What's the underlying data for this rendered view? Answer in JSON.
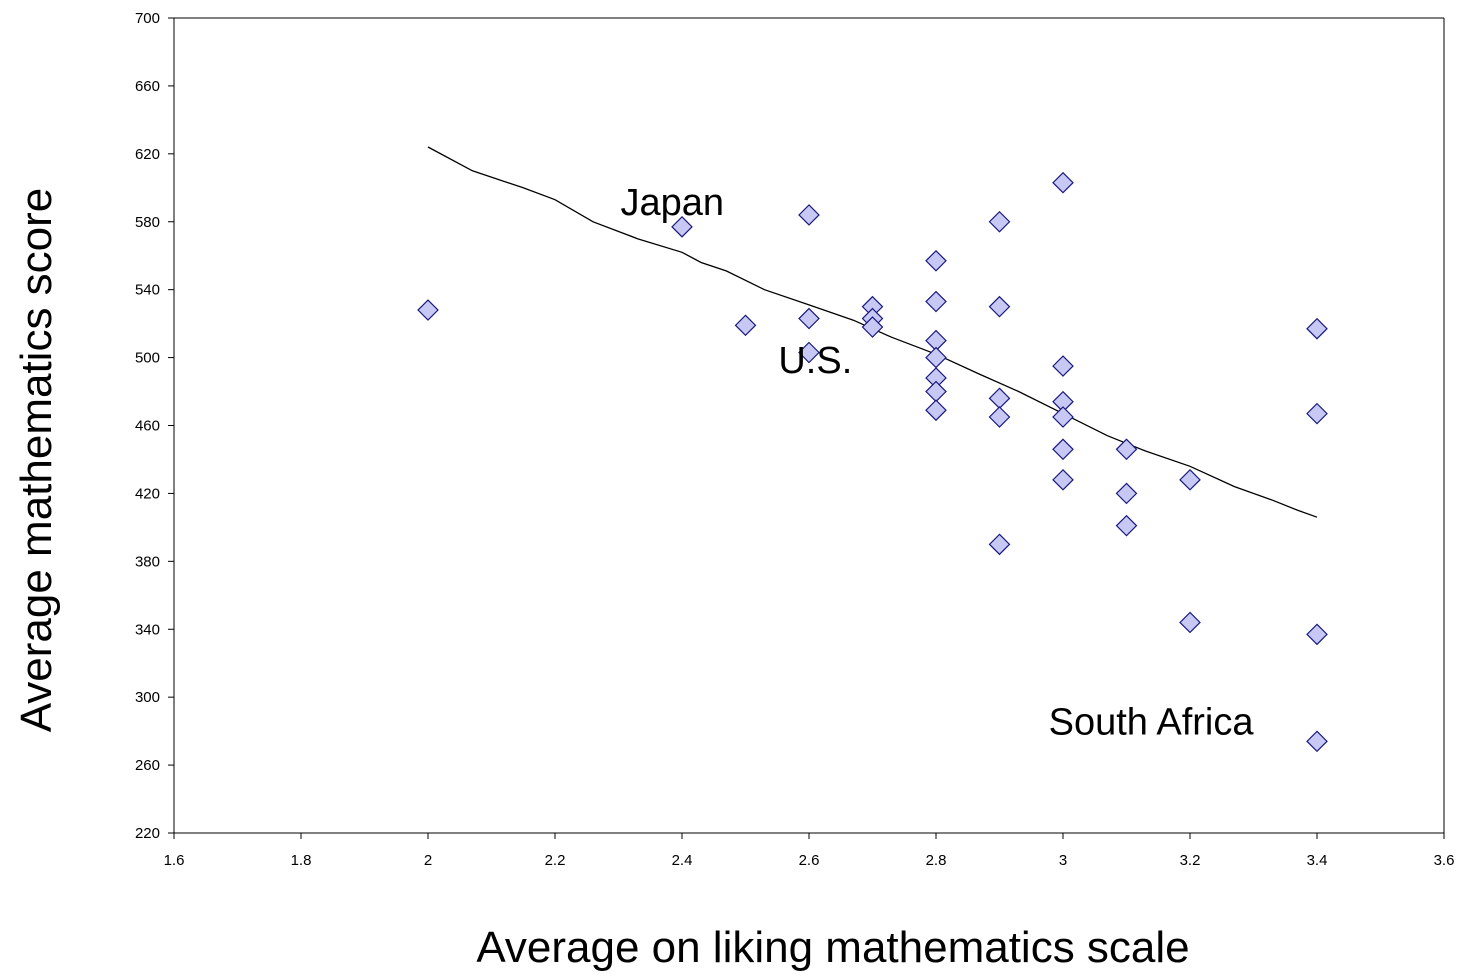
{
  "chart_data": {
    "type": "scatter",
    "title": "",
    "xlabel": "Average on liking mathematics scale",
    "ylabel": "Average mathematics score",
    "xlim": [
      1.6,
      3.6
    ],
    "ylim": [
      220,
      700
    ],
    "x_ticks": [
      "1.6",
      "1.8",
      "2",
      "2.2",
      "2.4",
      "2.6",
      "2.8",
      "3",
      "3.2",
      "3.4",
      "3.6"
    ],
    "y_ticks": [
      "220",
      "260",
      "300",
      "340",
      "380",
      "420",
      "460",
      "500",
      "540",
      "580",
      "620",
      "660",
      "700"
    ],
    "grid": false,
    "legend": "none",
    "marker": "diamond",
    "marker_fill": "#c8c8f5",
    "marker_stroke": "#1a1a80",
    "series": [
      {
        "points": [
          [
            2.0,
            528
          ],
          [
            2.4,
            577
          ],
          [
            2.5,
            519
          ],
          [
            2.6,
            584
          ],
          [
            2.6,
            523
          ],
          [
            2.6,
            503
          ],
          [
            2.7,
            530
          ],
          [
            2.7,
            523
          ],
          [
            2.7,
            518
          ],
          [
            2.8,
            557
          ],
          [
            2.8,
            533
          ],
          [
            2.8,
            510
          ],
          [
            2.8,
            500
          ],
          [
            2.8,
            488
          ],
          [
            2.8,
            480
          ],
          [
            2.8,
            469
          ],
          [
            2.9,
            580
          ],
          [
            2.9,
            530
          ],
          [
            2.9,
            476
          ],
          [
            2.9,
            465
          ],
          [
            2.9,
            390
          ],
          [
            3.0,
            603
          ],
          [
            3.0,
            495
          ],
          [
            3.0,
            474
          ],
          [
            3.0,
            465
          ],
          [
            3.0,
            446
          ],
          [
            3.0,
            428
          ],
          [
            3.1,
            446
          ],
          [
            3.1,
            420
          ],
          [
            3.1,
            401
          ],
          [
            3.2,
            428
          ],
          [
            3.2,
            344
          ],
          [
            3.4,
            517
          ],
          [
            3.4,
            467
          ],
          [
            3.4,
            337
          ],
          [
            3.4,
            274
          ]
        ]
      }
    ],
    "trendline": {
      "color": "#000000",
      "points": [
        [
          2.0,
          624
        ],
        [
          2.07,
          610
        ],
        [
          2.15,
          600
        ],
        [
          2.2,
          593
        ],
        [
          2.26,
          580
        ],
        [
          2.33,
          570
        ],
        [
          2.4,
          562
        ],
        [
          2.43,
          556
        ],
        [
          2.47,
          551
        ],
        [
          2.53,
          540
        ],
        [
          2.6,
          531
        ],
        [
          2.67,
          522
        ],
        [
          2.73,
          512
        ],
        [
          2.8,
          502
        ],
        [
          2.87,
          490
        ],
        [
          2.93,
          480
        ],
        [
          3.0,
          467
        ],
        [
          3.07,
          454
        ],
        [
          3.13,
          445
        ],
        [
          3.2,
          436
        ],
        [
          3.27,
          424
        ],
        [
          3.33,
          416
        ],
        [
          3.37,
          410
        ],
        [
          3.4,
          406
        ]
      ]
    },
    "annotations": [
      {
        "text": "Japan",
        "x": 2.4,
        "y": 590
      },
      {
        "text": "U.S.",
        "x": 2.75,
        "y": 484
      },
      {
        "text": "South Africa",
        "x": 3.3,
        "y": 278
      }
    ]
  }
}
